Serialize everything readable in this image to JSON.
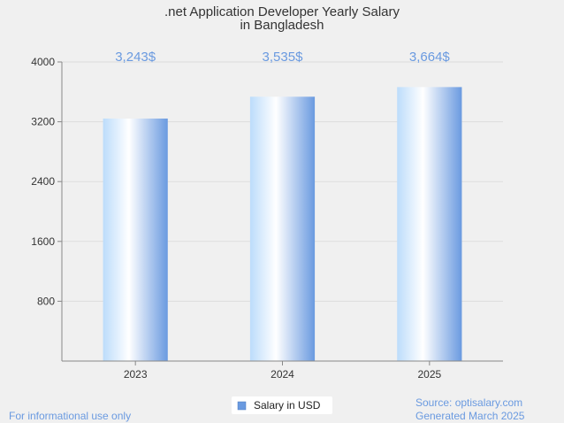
{
  "chart_data": {
    "type": "bar",
    "title_lines": [
      ".net Application Developer Yearly Salary",
      "in Bangladesh"
    ],
    "categories": [
      "2023",
      "2024",
      "2025"
    ],
    "values": [
      3243,
      3535,
      3664
    ],
    "data_labels": [
      "3,243$",
      "3,535$",
      "3,664$"
    ],
    "ylim": [
      0,
      4000
    ],
    "yticks": [
      800,
      1600,
      2400,
      3200,
      4000
    ],
    "grid": true,
    "legend": {
      "label": "Salary in USD",
      "position": "bottom-center"
    },
    "bar_color": "#6a9ae0"
  },
  "footer": {
    "left_note": "For informational use only",
    "source": "Source: optisalary.com",
    "generated": "Generated March 2025"
  },
  "colors": {
    "background": "#f0f0f0",
    "accent": "#6a9ae0",
    "grid": "#dddddd",
    "axis": "#888888"
  }
}
